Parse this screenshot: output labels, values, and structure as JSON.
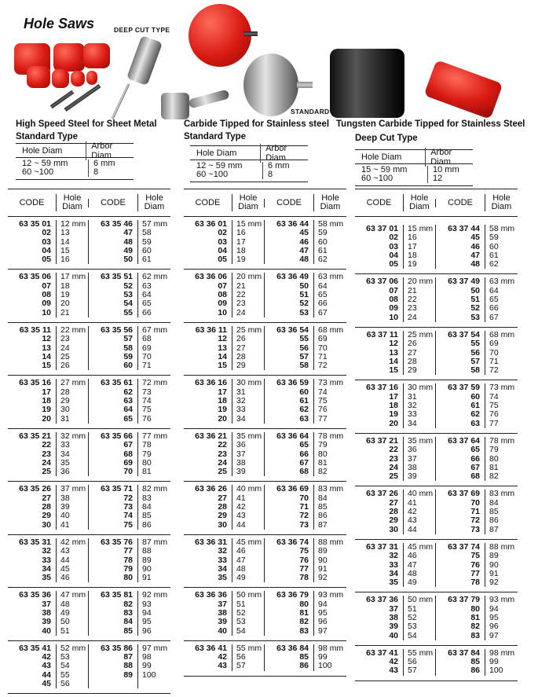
{
  "page_title": "Hole Saws",
  "image_labels": {
    "deep_cut": "DEEP CUT TYPE",
    "standard": "STANDARD TYPE"
  },
  "sections": [
    {
      "heading": "High Speed Steel for Sheet Metal",
      "subheading": "Standard Type",
      "spec": {
        "col1": "Hole  Diam",
        "col2": "Arbor  Diam",
        "rows": [
          [
            "12 ~ 59 mm",
            "6 mm"
          ],
          [
            "60 ~100",
            "8"
          ]
        ]
      },
      "headers": [
        "CODE",
        "Hole Diam",
        "CODE",
        "Hole Diam"
      ],
      "groups": [
        [
          [
            "63 35 01",
            "12 mm",
            "63 35 46",
            "57 mm"
          ],
          [
            "02",
            "13",
            "47",
            "58"
          ],
          [
            "03",
            "14",
            "48",
            "59"
          ],
          [
            "04",
            "15",
            "49",
            "60"
          ],
          [
            "05",
            "16",
            "50",
            "61"
          ]
        ],
        [
          [
            "63 35 06",
            "17 mm",
            "63 35 51",
            "62 mm"
          ],
          [
            "07",
            "18",
            "52",
            "63"
          ],
          [
            "08",
            "19",
            "53",
            "64"
          ],
          [
            "09",
            "20",
            "54",
            "65"
          ],
          [
            "10",
            "21",
            "55",
            "66"
          ]
        ],
        [
          [
            "63 35 11",
            "22 mm",
            "63 35 56",
            "67 mm"
          ],
          [
            "12",
            "23",
            "57",
            "68"
          ],
          [
            "13",
            "24",
            "58",
            "69"
          ],
          [
            "14",
            "25",
            "59",
            "70"
          ],
          [
            "15",
            "26",
            "60",
            "71"
          ]
        ],
        [
          [
            "63 35 16",
            "27 mm",
            "63 35 61",
            "72 mm"
          ],
          [
            "17",
            "28",
            "62",
            "73"
          ],
          [
            "18",
            "29",
            "63",
            "74"
          ],
          [
            "19",
            "30",
            "64",
            "75"
          ],
          [
            "20",
            "31",
            "65",
            "76"
          ]
        ],
        [
          [
            "63 35 21",
            "32 mm",
            "63 35 66",
            "77 mm"
          ],
          [
            "22",
            "33",
            "67",
            "78"
          ],
          [
            "23",
            "34",
            "68",
            "79"
          ],
          [
            "24",
            "35",
            "69",
            "80"
          ],
          [
            "25",
            "36",
            "70",
            "81"
          ]
        ],
        [
          [
            "63 35 26",
            "37 mm",
            "63 35 71",
            "82 mm"
          ],
          [
            "27",
            "38",
            "72",
            "83"
          ],
          [
            "28",
            "39",
            "73",
            "84"
          ],
          [
            "29",
            "40",
            "74",
            "85"
          ],
          [
            "30",
            "41",
            "75",
            "86"
          ]
        ],
        [
          [
            "63 35 31",
            "42 mm",
            "63 35 76",
            "87 mm"
          ],
          [
            "32",
            "43",
            "77",
            "88"
          ],
          [
            "33",
            "44",
            "78",
            "89"
          ],
          [
            "34",
            "45",
            "79",
            "90"
          ],
          [
            "35",
            "46",
            "80",
            "91"
          ]
        ],
        [
          [
            "63 35 36",
            "47 mm",
            "63 35 81",
            "92 mm"
          ],
          [
            "37",
            "48",
            "82",
            "93"
          ],
          [
            "38",
            "49",
            "83",
            "94"
          ],
          [
            "39",
            "50",
            "84",
            "95"
          ],
          [
            "40",
            "51",
            "85",
            "96"
          ]
        ],
        [
          [
            "63 35 41",
            "52 mm",
            "63 35 86",
            "97 mm"
          ],
          [
            "42",
            "53",
            "87",
            "98"
          ],
          [
            "43",
            "54",
            "88",
            "99"
          ],
          [
            "44",
            "55",
            "89",
            "100"
          ],
          [
            "45",
            "56",
            "",
            ""
          ]
        ]
      ]
    },
    {
      "heading": "Carbide Tipped for Stainless steel",
      "subheading": "Standard Type",
      "spec": {
        "col1": "Hole  Diam",
        "col2": "Arbor  Diam",
        "rows": [
          [
            "12 ~ 59 mm",
            "6 mm"
          ],
          [
            "60 ~100",
            "8"
          ]
        ]
      },
      "headers": [
        "CODE",
        "Hole Diam",
        "CODE",
        "Hole Diam"
      ],
      "groups": [
        [
          [
            "63 36 01",
            "15 mm",
            "63 36 44",
            "58 mm"
          ],
          [
            "02",
            "16",
            "45",
            "59"
          ],
          [
            "03",
            "17",
            "46",
            "60"
          ],
          [
            "04",
            "18",
            "47",
            "61"
          ],
          [
            "05",
            "19",
            "48",
            "62"
          ]
        ],
        [
          [
            "63 36 06",
            "20 mm",
            "63 36 49",
            "63 mm"
          ],
          [
            "07",
            "21",
            "50",
            "64"
          ],
          [
            "08",
            "22",
            "51",
            "65"
          ],
          [
            "09",
            "23",
            "52",
            "66"
          ],
          [
            "10",
            "24",
            "53",
            "67"
          ]
        ],
        [
          [
            "63 36 11",
            "25 mm",
            "63 36 54",
            "68 mm"
          ],
          [
            "12",
            "26",
            "55",
            "69"
          ],
          [
            "13",
            "27",
            "56",
            "70"
          ],
          [
            "14",
            "28",
            "57",
            "71"
          ],
          [
            "15",
            "29",
            "58",
            "72"
          ]
        ],
        [
          [
            "63 36 16",
            "30 mm",
            "63 36 59",
            "73 mm"
          ],
          [
            "17",
            "31",
            "60",
            "74"
          ],
          [
            "18",
            "32",
            "61",
            "75"
          ],
          [
            "19",
            "33",
            "62",
            "76"
          ],
          [
            "20",
            "34",
            "63",
            "77"
          ]
        ],
        [
          [
            "63 36 21",
            "35 mm",
            "63 36 64",
            "78 mm"
          ],
          [
            "22",
            "36",
            "65",
            "79"
          ],
          [
            "23",
            "37",
            "66",
            "80"
          ],
          [
            "24",
            "38",
            "67",
            "81"
          ],
          [
            "25",
            "39",
            "68",
            "82"
          ]
        ],
        [
          [
            "63 36 26",
            "40 mm",
            "63 36 69",
            "83 mm"
          ],
          [
            "27",
            "41",
            "70",
            "84"
          ],
          [
            "28",
            "42",
            "71",
            "85"
          ],
          [
            "29",
            "43",
            "72",
            "86"
          ],
          [
            "30",
            "44",
            "73",
            "87"
          ]
        ],
        [
          [
            "63 36 31",
            "45 mm",
            "63 36 74",
            "88 mm"
          ],
          [
            "32",
            "46",
            "75",
            "89"
          ],
          [
            "33",
            "47",
            "76",
            "90"
          ],
          [
            "34",
            "48",
            "77",
            "91"
          ],
          [
            "35",
            "49",
            "78",
            "92"
          ]
        ],
        [
          [
            "63 36 36",
            "50 mm",
            "63 36 79",
            "93 mm"
          ],
          [
            "37",
            "51",
            "80",
            "94"
          ],
          [
            "38",
            "52",
            "81",
            "95"
          ],
          [
            "39",
            "53",
            "82",
            "96"
          ],
          [
            "40",
            "54",
            "83",
            "97"
          ]
        ],
        [
          [
            "63 36 41",
            "55 mm",
            "63 36 84",
            "98 mm"
          ],
          [
            "42",
            "56",
            "85",
            "99"
          ],
          [
            "43",
            "57",
            "86",
            "100"
          ]
        ]
      ]
    },
    {
      "heading": "Tungsten Carbide Tipped for Stainless Steel",
      "subheading": "Deep Cut Type",
      "spec": {
        "col1": "Hole  Diam",
        "col2": "Arbor  Diam",
        "rows": [
          [
            "15 ~ 59 mm",
            "10 mm"
          ],
          [
            "60 ~100",
            "12"
          ]
        ]
      },
      "headers": [
        "CODE",
        "Hole Diam",
        "CODE",
        "Hole Diam"
      ],
      "groups": [
        [
          [
            "63 37 01",
            "15 mm",
            "63 37 44",
            "58 mm"
          ],
          [
            "02",
            "16",
            "45",
            "59"
          ],
          [
            "03",
            "17",
            "46",
            "60"
          ],
          [
            "04",
            "18",
            "47",
            "61"
          ],
          [
            "05",
            "19",
            "48",
            "62"
          ]
        ],
        [
          [
            "63 37 06",
            "20 mm",
            "63 37 49",
            "63 mm"
          ],
          [
            "07",
            "21",
            "50",
            "64"
          ],
          [
            "08",
            "22",
            "51",
            "65"
          ],
          [
            "09",
            "23",
            "52",
            "66"
          ],
          [
            "10",
            "24",
            "53",
            "67"
          ]
        ],
        [
          [
            "63 37 11",
            "25 mm",
            "63 37 54",
            "68 mm"
          ],
          [
            "12",
            "26",
            "55",
            "69"
          ],
          [
            "13",
            "27",
            "56",
            "70"
          ],
          [
            "14",
            "28",
            "57",
            "71"
          ],
          [
            "15",
            "29",
            "58",
            "72"
          ]
        ],
        [
          [
            "63 37 16",
            "30 mm",
            "63 37 59",
            "73 mm"
          ],
          [
            "17",
            "31",
            "60",
            "74"
          ],
          [
            "18",
            "32",
            "61",
            "75"
          ],
          [
            "19",
            "33",
            "62",
            "76"
          ],
          [
            "20",
            "34",
            "63",
            "77"
          ]
        ],
        [
          [
            "63 37 21",
            "35 mm",
            "63 37 64",
            "78 mm"
          ],
          [
            "22",
            "36",
            "65",
            "79"
          ],
          [
            "23",
            "37",
            "66",
            "80"
          ],
          [
            "24",
            "38",
            "67",
            "81"
          ],
          [
            "25",
            "39",
            "68",
            "82"
          ]
        ],
        [
          [
            "63 37 26",
            "40 mm",
            "63 37 69",
            "83 mm"
          ],
          [
            "27",
            "41",
            "70",
            "84"
          ],
          [
            "28",
            "42",
            "71",
            "85"
          ],
          [
            "29",
            "43",
            "72",
            "86"
          ],
          [
            "30",
            "44",
            "73",
            "87"
          ]
        ],
        [
          [
            "63 37 31",
            "45 mm",
            "63 37 74",
            "88 mm"
          ],
          [
            "32",
            "46",
            "75",
            "89"
          ],
          [
            "33",
            "47",
            "76",
            "90"
          ],
          [
            "34",
            "48",
            "77",
            "91"
          ],
          [
            "35",
            "49",
            "78",
            "92"
          ]
        ],
        [
          [
            "63 37 36",
            "50 mm",
            "63 37 79",
            "93 mm"
          ],
          [
            "37",
            "51",
            "80",
            "94"
          ],
          [
            "38",
            "52",
            "81",
            "95"
          ],
          [
            "39",
            "53",
            "82",
            "96"
          ],
          [
            "40",
            "54",
            "83",
            "97"
          ]
        ],
        [
          [
            "63 37 41",
            "55 mm",
            "63 37 84",
            "98 mm"
          ],
          [
            "42",
            "56",
            "85",
            "99"
          ],
          [
            "43",
            "57",
            "86",
            "100"
          ]
        ]
      ]
    }
  ]
}
